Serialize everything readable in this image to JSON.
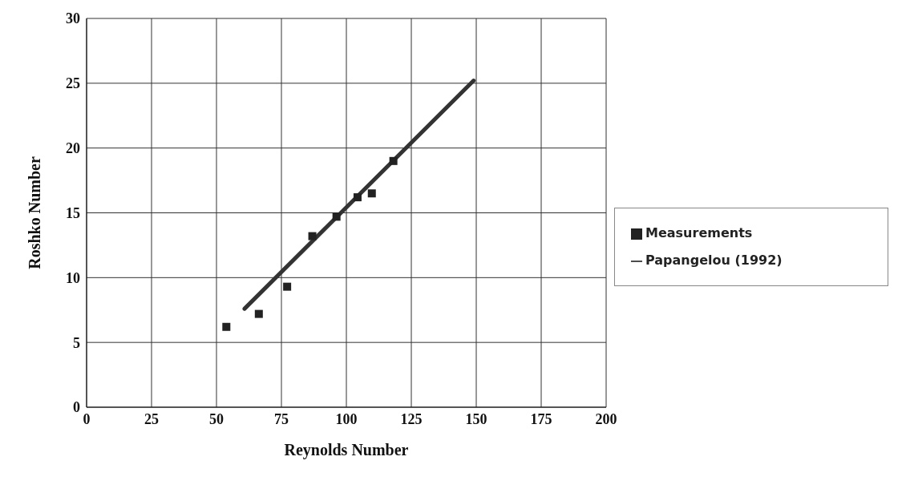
{
  "chart_data": {
    "type": "scatter",
    "xlabel": "Reynolds Number",
    "ylabel": "Roshko Number",
    "xlim": [
      0,
      200
    ],
    "xticks": [
      0,
      25,
      50,
      75,
      100,
      125,
      150,
      175,
      200
    ],
    "ylim": [
      0,
      30
    ],
    "yticks": [
      0,
      5,
      10,
      15,
      20,
      25,
      30
    ],
    "grid": true,
    "legend": "right",
    "series": [
      {
        "name": "Measurements",
        "marker": "square",
        "color": "#222222",
        "x": [
          53.8,
          66.3,
          77.2,
          86.9,
          96.2,
          104.3,
          109.8,
          118.1
        ],
        "values": [
          6.2,
          7.2,
          9.3,
          13.2,
          14.7,
          16.2,
          16.5,
          19.0
        ]
      },
      {
        "name": "Papangelou (1992)",
        "type": "line",
        "marker": "none",
        "color": "#333333",
        "x": [
          60.8,
          149
        ],
        "values": [
          7.6,
          25.2
        ]
      }
    ]
  }
}
